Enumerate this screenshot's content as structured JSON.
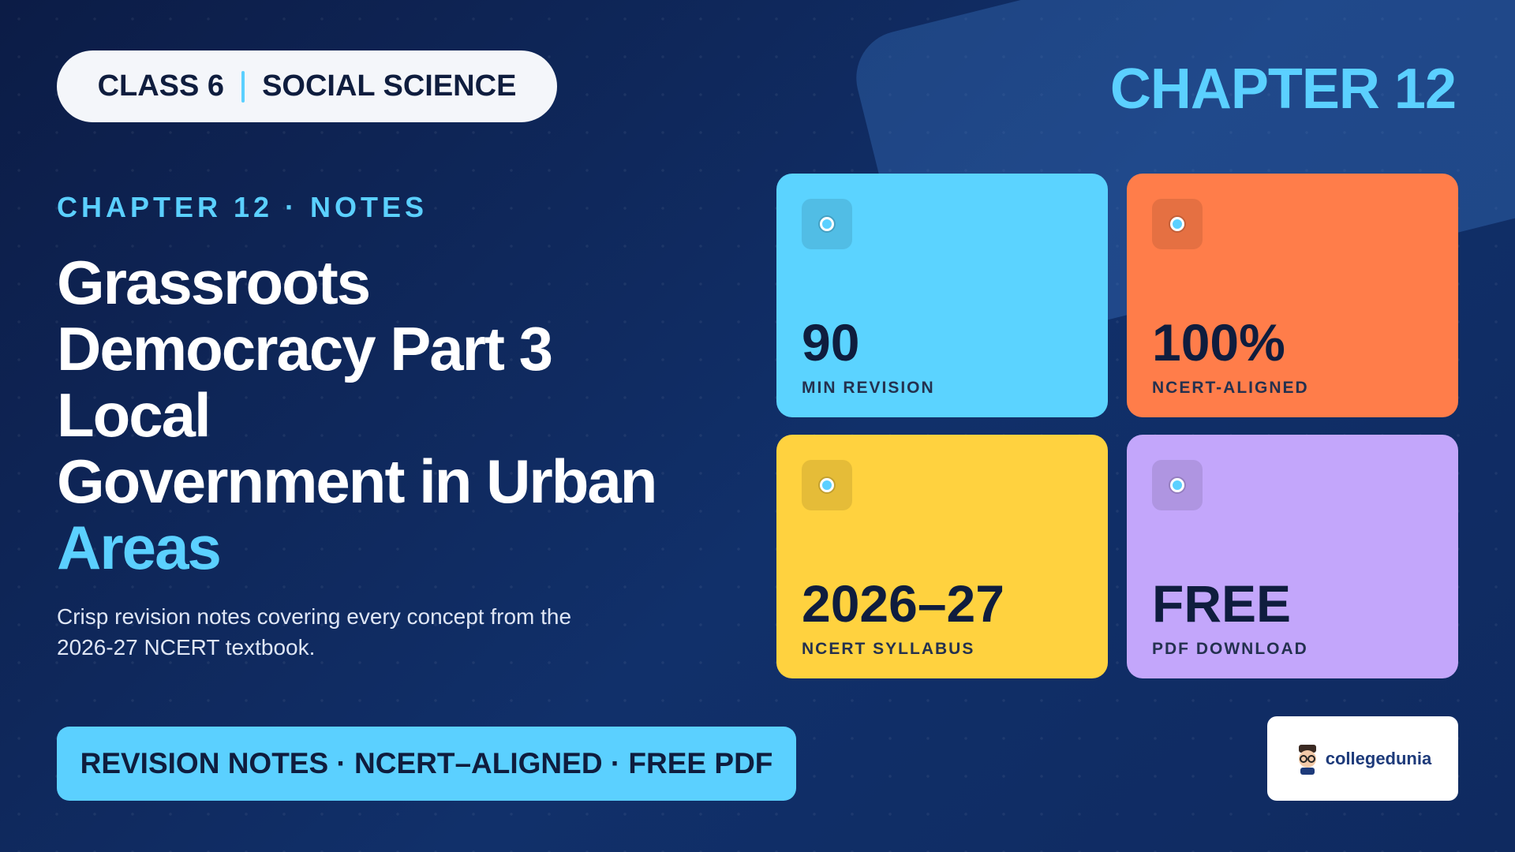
{
  "header": {
    "class_label": "CLASS 6",
    "subject": "SOCIAL SCIENCE"
  },
  "chapter_badge": "CHAPTER 12",
  "notes_tag": "CHAPTER 12 · NOTES",
  "title": {
    "lines": [
      "Grassroots",
      "Democracy Part 3",
      "Local",
      "Government in Urban"
    ],
    "highlight": "Areas"
  },
  "subtitle": "Crisp revision notes covering every concept from the 2026-27 NCERT textbook.",
  "stats": [
    {
      "value": "90",
      "label": "MIN REVISION"
    },
    {
      "value": "100%",
      "label": "NCERT-ALIGNED"
    },
    {
      "value": "2026–27",
      "label": "NCERT SYLLABUS"
    },
    {
      "value": "FREE",
      "label": "PDF DOWNLOAD"
    }
  ],
  "banner": "REVISION NOTES · NCERT–ALIGNED · FREE PDF",
  "logo": {
    "text": "collegedunia"
  }
}
